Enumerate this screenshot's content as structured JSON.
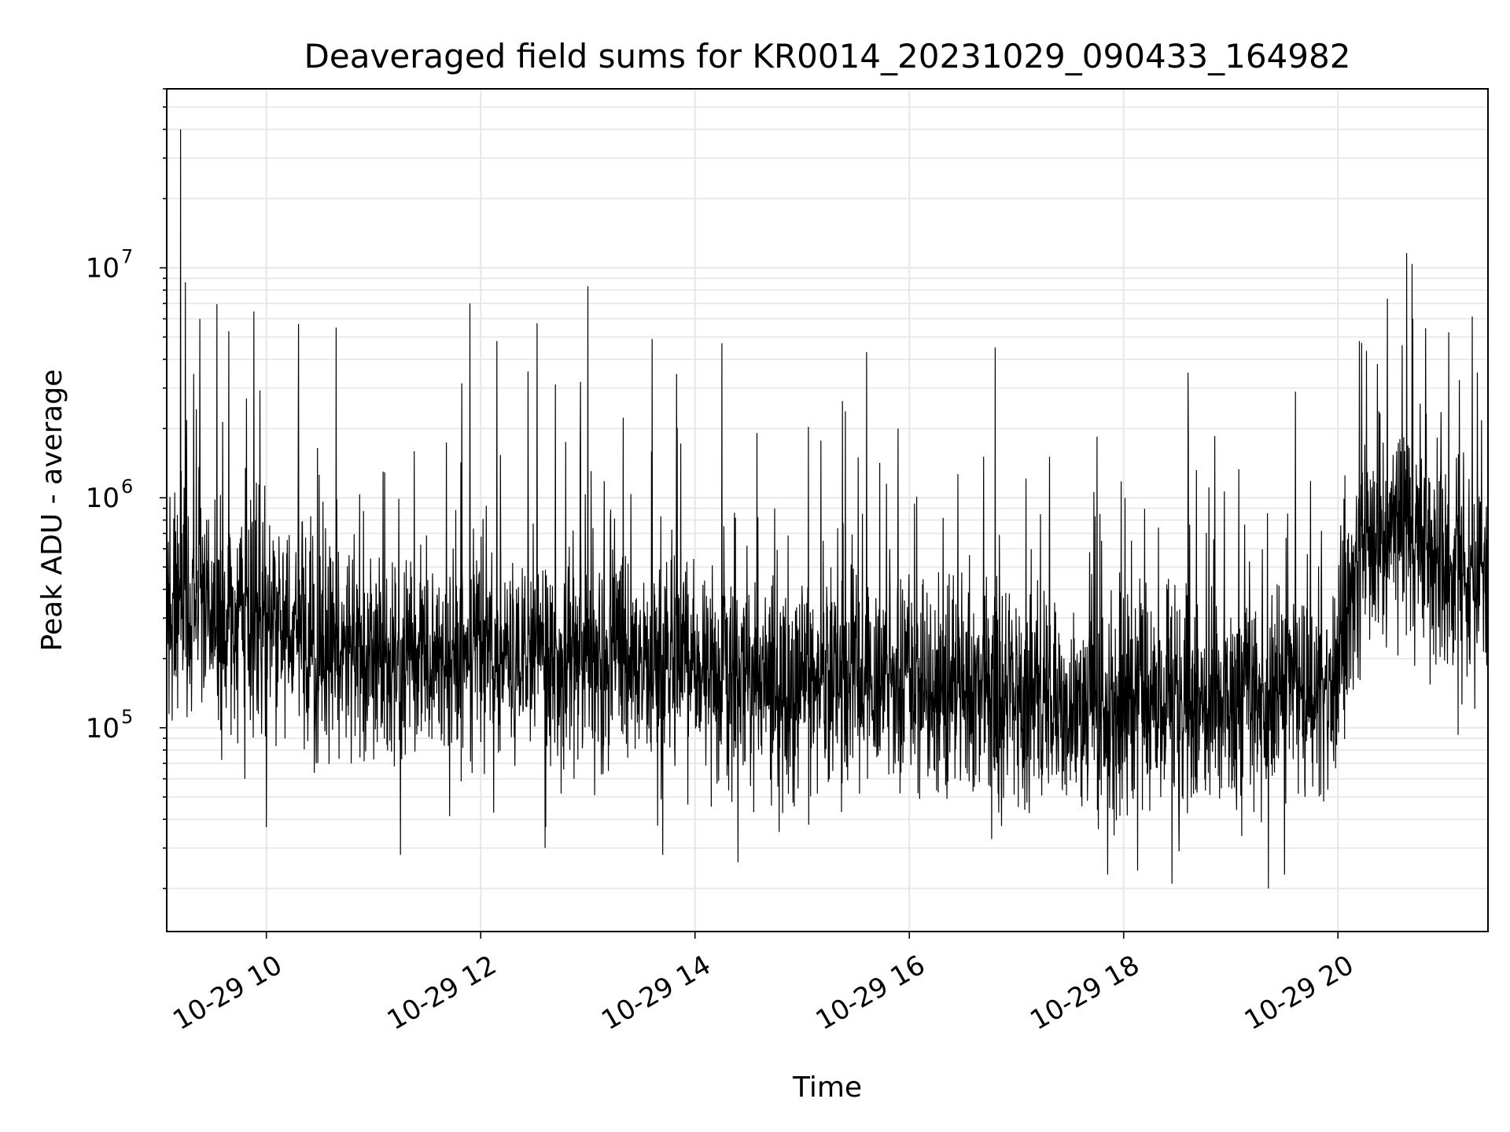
{
  "chart_data": {
    "type": "line",
    "title": "Deaveraged field sums for KR0014_20231029_090433_164982",
    "xlabel": "Time",
    "ylabel": "Peak ADU - average",
    "x_is_time": true,
    "x_tick_hours": [
      10,
      12,
      14,
      16,
      18,
      20
    ],
    "x_tick_labels": [
      "10-29 10",
      "10-29 12",
      "10-29 14",
      "10-29 16",
      "10-29 18",
      "10-29 20"
    ],
    "xlim_hours": [
      9.07,
      21.4
    ],
    "y_scale": "log",
    "ylim": [
      13000,
      60000000
    ],
    "y_major_ticks": [
      100000,
      1000000,
      10000000
    ],
    "y_tick_labels": [
      {
        "base": "10",
        "exp": "5"
      },
      {
        "base": "10",
        "exp": "6"
      },
      {
        "base": "10",
        "exp": "7"
      }
    ],
    "grid": true,
    "line_color": "#000000",
    "grid_color": "#e6e6e6",
    "sample_interval_hours": 0.003,
    "baseline_profile": [
      {
        "hour": 9.07,
        "value": 350000
      },
      {
        "hour": 9.5,
        "value": 330000
      },
      {
        "hour": 10.0,
        "value": 260000
      },
      {
        "hour": 11.0,
        "value": 210000
      },
      {
        "hour": 12.0,
        "value": 200000
      },
      {
        "hour": 13.0,
        "value": 190000
      },
      {
        "hour": 14.0,
        "value": 180000
      },
      {
        "hour": 15.0,
        "value": 160000
      },
      {
        "hour": 16.0,
        "value": 150000
      },
      {
        "hour": 17.0,
        "value": 130000
      },
      {
        "hour": 18.0,
        "value": 120000
      },
      {
        "hour": 19.0,
        "value": 130000
      },
      {
        "hour": 19.9,
        "value": 150000
      },
      {
        "hour": 20.2,
        "value": 500000
      },
      {
        "hour": 20.6,
        "value": 700000
      },
      {
        "hour": 21.0,
        "value": 550000
      },
      {
        "hour": 21.4,
        "value": 480000
      }
    ],
    "noise_spread_decades": 0.42,
    "notable_peaks": [
      {
        "hour": 9.2,
        "value": 40000000
      },
      {
        "hour": 9.38,
        "value": 6000000
      },
      {
        "hour": 9.65,
        "value": 5300000
      },
      {
        "hour": 10.3,
        "value": 5700000
      },
      {
        "hour": 10.65,
        "value": 5500000
      },
      {
        "hour": 11.9,
        "value": 7000000
      },
      {
        "hour": 12.15,
        "value": 4800000
      },
      {
        "hour": 12.6,
        "value": 10000000
      },
      {
        "hour": 13.0,
        "value": 8300000
      },
      {
        "hour": 13.6,
        "value": 4900000
      },
      {
        "hour": 14.25,
        "value": 4700000
      },
      {
        "hour": 15.6,
        "value": 4300000
      },
      {
        "hour": 16.8,
        "value": 4500000
      },
      {
        "hour": 18.6,
        "value": 3500000
      },
      {
        "hour": 20.2,
        "value": 4800000
      },
      {
        "hour": 20.6,
        "value": 4600000
      },
      {
        "hour": 21.3,
        "value": 3500000
      }
    ],
    "notable_troughs": [
      {
        "hour": 9.8,
        "value": 60000
      },
      {
        "hour": 10.0,
        "value": 37000
      },
      {
        "hour": 11.25,
        "value": 28000
      },
      {
        "hour": 12.6,
        "value": 30000
      },
      {
        "hour": 13.7,
        "value": 28000
      },
      {
        "hour": 14.4,
        "value": 26000
      },
      {
        "hour": 17.85,
        "value": 23000
      },
      {
        "hour": 18.45,
        "value": 21000
      },
      {
        "hour": 19.35,
        "value": 20000
      },
      {
        "hour": 19.5,
        "value": 23000
      }
    ]
  }
}
